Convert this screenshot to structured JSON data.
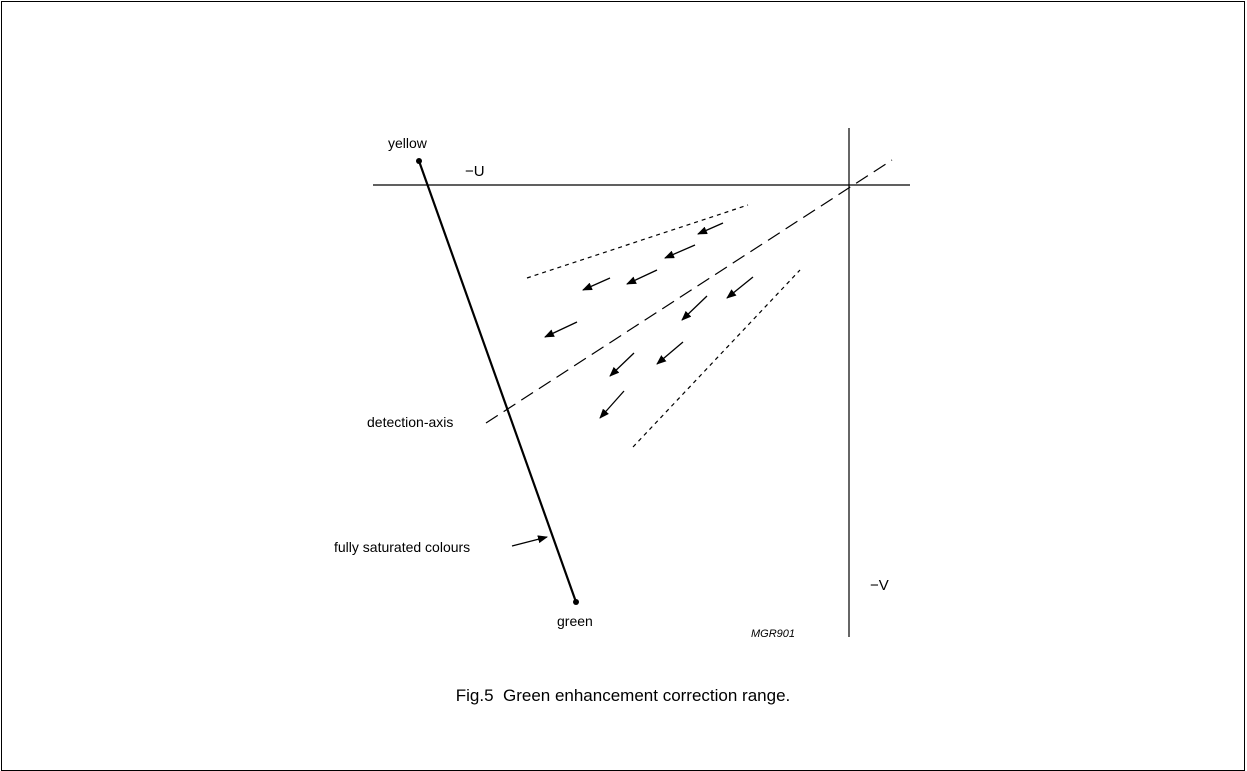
{
  "labels": {
    "yellow": "yellow",
    "green": "green",
    "minus_u": "−U",
    "minus_v": "−V",
    "detection_axis": "detection-axis",
    "fully_saturated": "fully saturated colours",
    "drawing_code": "MGR901"
  },
  "caption": "Fig.5  Green enhancement correction range."
}
